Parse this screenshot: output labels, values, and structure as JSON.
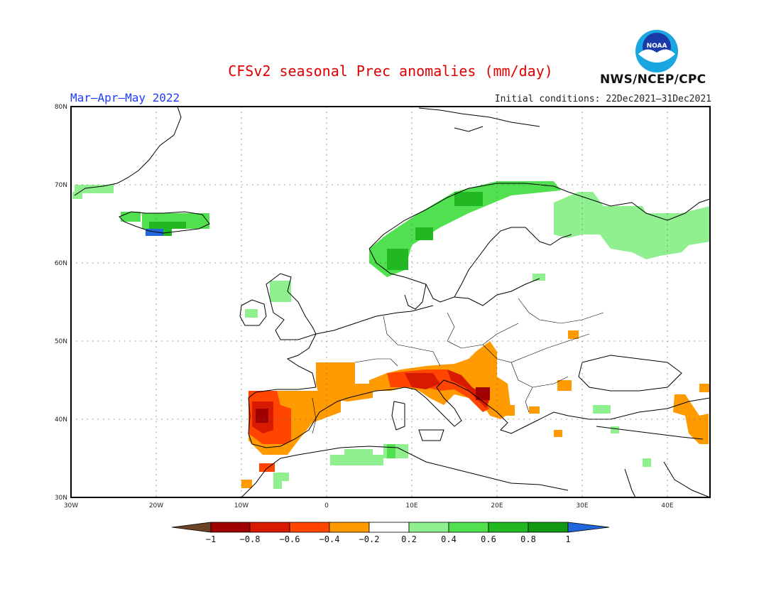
{
  "header": {
    "title": "CFSv2 seasonal Prec anomalies (mm/day)",
    "period": "Mar–Apr–May 2022",
    "initial_conditions": "Initial conditions: 22Dec2021–31Dec2021",
    "agency": "NWS/NCEP/CPC",
    "logo_text": "NOAA"
  },
  "map": {
    "lon_range": [
      -30,
      45
    ],
    "lat_range": [
      30,
      80
    ],
    "lon_ticks": [
      "30W",
      "20W",
      "10W",
      "0",
      "10E",
      "20E",
      "30E",
      "40E"
    ],
    "lat_ticks": [
      "80N",
      "70N",
      "60N",
      "50N",
      "40N",
      "30N"
    ],
    "grid": "dotted"
  },
  "colorbar": {
    "labels": [
      "−1",
      "−0.8",
      "−0.6",
      "−0.4",
      "−0.2",
      "0.2",
      "0.4",
      "0.6",
      "0.8",
      "1"
    ],
    "colors": [
      "#6b4226",
      "#a00000",
      "#d81a00",
      "#ff4500",
      "#ff9a00",
      "#ffffff",
      "#90f090",
      "#50e050",
      "#22b822",
      "#119911",
      "#2266dd"
    ]
  }
}
